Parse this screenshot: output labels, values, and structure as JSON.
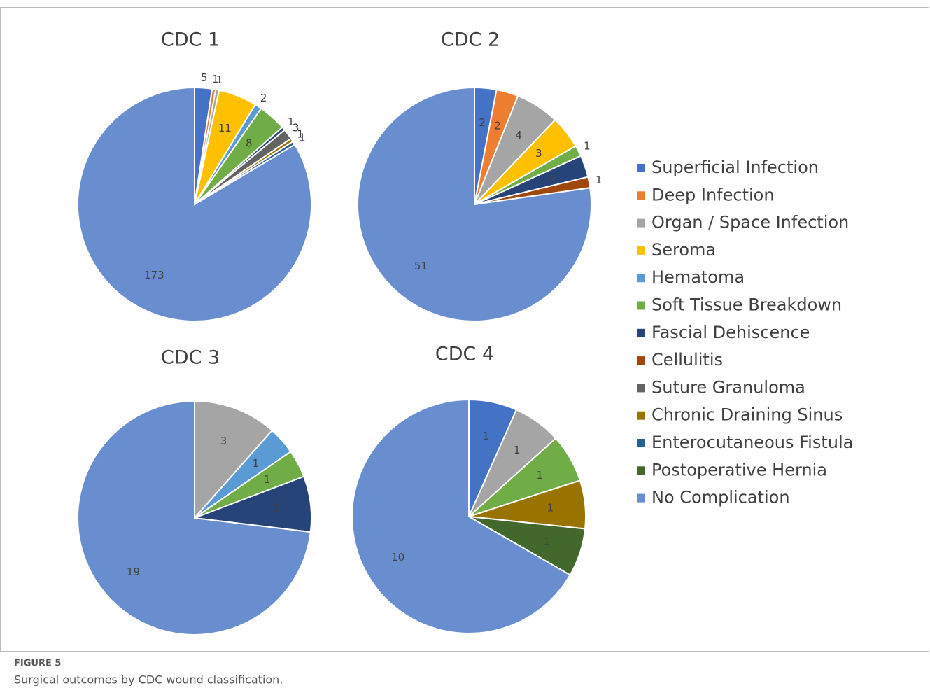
{
  "legend": {
    "categories": [
      "Superficial Infection",
      "Deep Infection",
      "Organ / Space Infection",
      "Seroma",
      "Hematoma",
      "Soft Tissue Breakdown",
      "Fascial Dehiscence",
      "Cellulitis",
      "Suture Granuloma",
      "Chronic Draining Sinus",
      "Enterocutaneous Fistula",
      "Postoperative Hernia",
      "No Complication"
    ],
    "colors": [
      "#4472c4",
      "#ed7d31",
      "#a5a5a5",
      "#ffc000",
      "#5b9bd5",
      "#70ad47",
      "#264478",
      "#9e480e",
      "#636363",
      "#997300",
      "#255e91",
      "#43682b",
      "#698ed0"
    ]
  },
  "chart_data": [
    {
      "type": "pie",
      "title": "CDC 1",
      "values": [
        5,
        1,
        1,
        11,
        2,
        8,
        1,
        null,
        3,
        1,
        1,
        null,
        173
      ]
    },
    {
      "type": "pie",
      "title": "CDC 2",
      "values": [
        2,
        2,
        4,
        3,
        null,
        1,
        2,
        1,
        null,
        null,
        null,
        null,
        51
      ]
    },
    {
      "type": "pie",
      "title": "CDC 3",
      "values": [
        null,
        null,
        3,
        null,
        1,
        1,
        2,
        null,
        null,
        null,
        null,
        null,
        19
      ]
    },
    {
      "type": "pie",
      "title": "CDC 4",
      "values": [
        1,
        null,
        1,
        null,
        null,
        1,
        null,
        null,
        null,
        1,
        null,
        1,
        10
      ]
    }
  ],
  "caption": {
    "label": "FIGURE 5",
    "text": "Surgical outcomes by CDC wound classification."
  }
}
